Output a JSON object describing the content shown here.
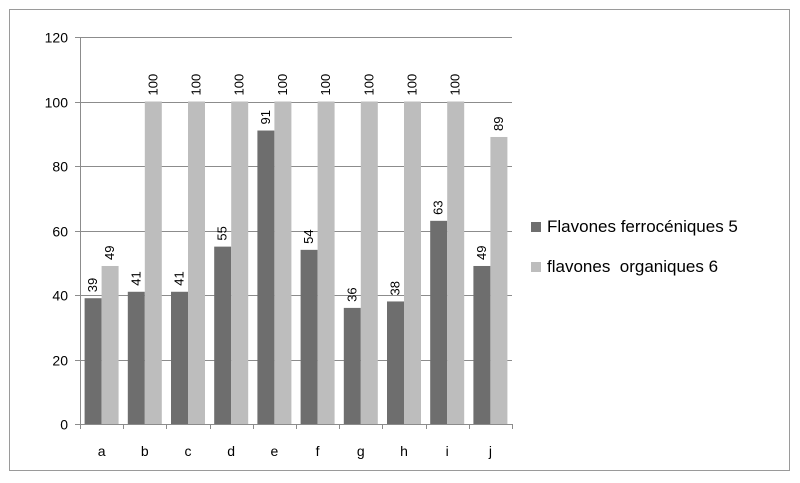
{
  "chart_data": {
    "type": "bar",
    "categories": [
      "a",
      "b",
      "c",
      "d",
      "e",
      "f",
      "g",
      "h",
      "i",
      "j"
    ],
    "series": [
      {
        "name": "Flavones ferrocéniques 5",
        "values": [
          39,
          41,
          41,
          55,
          91,
          54,
          36,
          38,
          63,
          49
        ],
        "color": "#6e6e6e"
      },
      {
        "name": "flavones  organiques 6",
        "values": [
          49,
          100,
          100,
          100,
          100,
          100,
          100,
          100,
          100,
          89
        ],
        "color": "#bdbdbd"
      }
    ],
    "yticks": [
      0,
      20,
      40,
      60,
      80,
      100,
      120
    ],
    "ylim": [
      0,
      120
    ],
    "grid": true,
    "legend_position": "right",
    "data_labels": true
  }
}
